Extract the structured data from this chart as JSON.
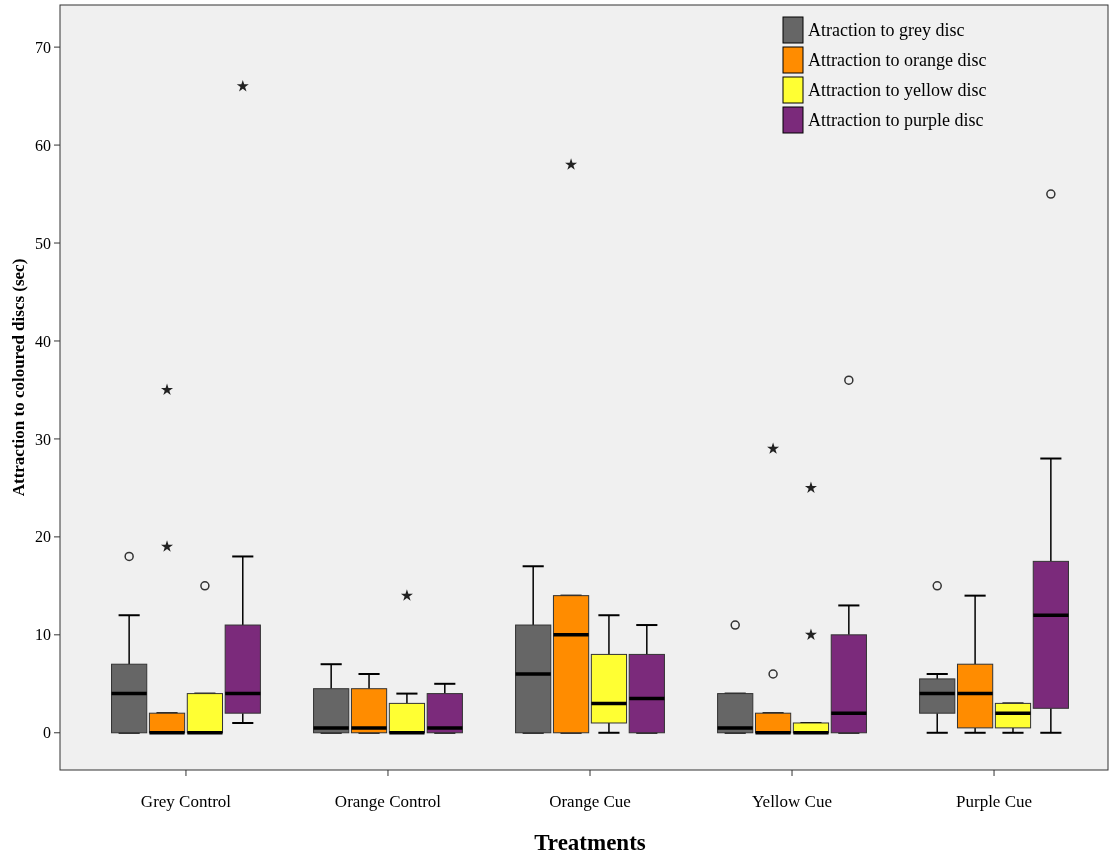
{
  "chart_data": {
    "type": "box",
    "xlabel": "Treatments",
    "ylabel": "Attraction to coloured discs (sec)",
    "categories": [
      "Grey Control",
      "Orange Control",
      "Orange Cue",
      "Yellow Cue",
      "Purple Cue"
    ],
    "ylim": [
      -3.8,
      74.3
    ],
    "yticks": [
      0,
      10,
      20,
      30,
      40,
      50,
      60,
      70
    ],
    "legend": "top right",
    "grid": false,
    "series": [
      {
        "name": "Atraction to grey disc",
        "color": "#666666",
        "boxes": [
          {
            "low": 0,
            "q1": 0,
            "median": 4,
            "q3": 7,
            "high": 12,
            "outliers": [
              18
            ]
          },
          {
            "low": 0,
            "q1": 0,
            "median": 0.5,
            "q3": 4.5,
            "high": 7
          },
          {
            "low": 0,
            "q1": 0,
            "median": 6,
            "q3": 11,
            "high": 17
          },
          {
            "low": 0,
            "q1": 0,
            "median": 0.5,
            "q3": 4,
            "high": 4,
            "outliers": [
              11
            ]
          },
          {
            "low": 0,
            "q1": 2,
            "median": 4,
            "q3": 5.5,
            "high": 6,
            "outliers": [
              15
            ]
          }
        ]
      },
      {
        "name": "Attraction to orange disc",
        "color": "#ff8c00",
        "boxes": [
          {
            "low": 0,
            "q1": 0,
            "median": 0,
            "q3": 2,
            "high": 2,
            "outliers": [
              35,
              19
            ]
          },
          {
            "low": 0,
            "q1": 0,
            "median": 0.5,
            "q3": 4.5,
            "high": 6
          },
          {
            "low": 0,
            "q1": 0,
            "median": 10,
            "q3": 14,
            "high": 14,
            "outliers": [
              58
            ]
          },
          {
            "low": 0,
            "q1": 0,
            "median": 0,
            "q3": 2,
            "high": 2,
            "outliers": [
              29,
              6
            ]
          },
          {
            "low": 0,
            "q1": 0.5,
            "median": 4,
            "q3": 7,
            "high": 14
          }
        ]
      },
      {
        "name": "Attraction to yellow disc",
        "color": "#ffff33",
        "boxes": [
          {
            "low": 0,
            "q1": 0,
            "median": 0,
            "q3": 4,
            "high": 4,
            "outliers": [
              15
            ]
          },
          {
            "low": 0,
            "q1": 0,
            "median": 0,
            "q3": 3,
            "high": 4,
            "outliers": [
              14
            ]
          },
          {
            "low": 0,
            "q1": 1,
            "median": 3,
            "q3": 8,
            "high": 12
          },
          {
            "low": 0,
            "q1": 0,
            "median": 0,
            "q3": 1,
            "high": 1,
            "outliers": [
              25,
              10
            ]
          },
          {
            "low": 0,
            "q1": 0.5,
            "median": 2,
            "q3": 3,
            "high": 3
          }
        ]
      },
      {
        "name": "Attraction to purple disc",
        "color": "#7b2a7b",
        "boxes": [
          {
            "low": 1,
            "q1": 2,
            "median": 4,
            "q3": 11,
            "high": 18,
            "outliers": [
              66
            ]
          },
          {
            "low": 0,
            "q1": 0,
            "median": 0.5,
            "q3": 4,
            "high": 5
          },
          {
            "low": 0,
            "q1": 0,
            "median": 3.5,
            "q3": 8,
            "high": 11
          },
          {
            "low": 0,
            "q1": 0,
            "median": 2,
            "q3": 10,
            "high": 13,
            "outliers": [
              36
            ]
          },
          {
            "low": 0,
            "q1": 2.5,
            "median": 12,
            "q3": 17.5,
            "high": 28,
            "outliers": [
              55
            ]
          }
        ]
      }
    ]
  }
}
